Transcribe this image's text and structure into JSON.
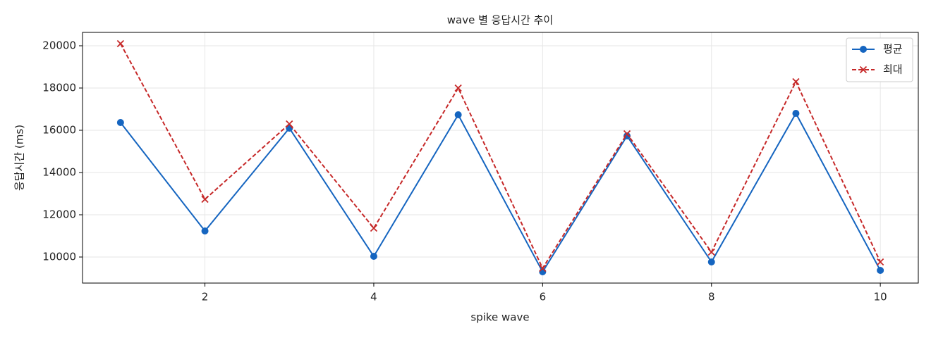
{
  "chart_data": {
    "type": "line",
    "title": "wave 별 응답시간 추이",
    "x_label": "spike wave",
    "y_label": "응답시간 (ms)",
    "x": [
      1,
      2,
      3,
      4,
      5,
      6,
      7,
      8,
      9,
      10
    ],
    "series": [
      {
        "name": "평균",
        "color": "#1565c0",
        "marker": "circle",
        "dash": "solid",
        "values": [
          16367,
          11233,
          16100,
          10033,
          16733,
          9300,
          15733,
          9767,
          16800,
          9367
        ]
      },
      {
        "name": "최대",
        "color": "#c62828",
        "marker": "x",
        "dash": "dashed",
        "values": [
          20100,
          12733,
          16300,
          11367,
          18000,
          9467,
          15833,
          10233,
          18300,
          9767
        ]
      }
    ],
    "xlim": [
      0.55,
      10.45
    ],
    "xticks": [
      2,
      4,
      6,
      8,
      10
    ],
    "ylim": [
      8767,
      20633
    ],
    "yticks": [
      10000,
      12000,
      14000,
      16000,
      18000,
      20000
    ],
    "grid": true,
    "legend": "upper right"
  }
}
